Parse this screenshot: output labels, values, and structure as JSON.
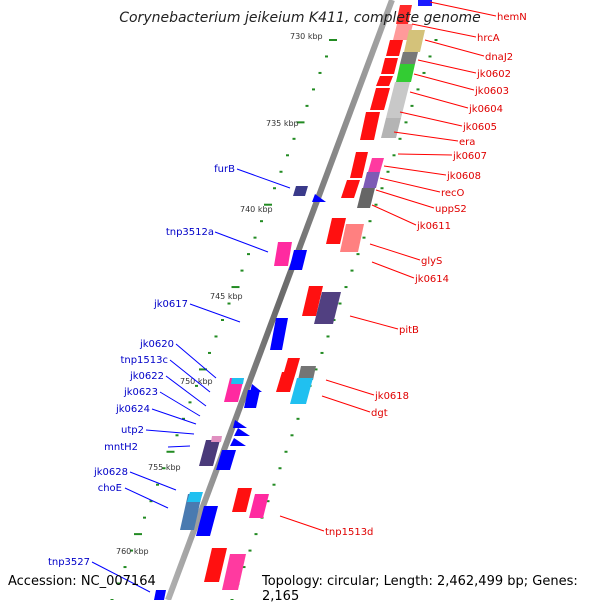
{
  "title": "Corynebacterium jeikeium K411, complete genome",
  "accession": "Accession: NC_007164",
  "topology": "Topology: circular; Length: 2,462,499 bp; Genes: 2,165",
  "colors": {
    "forward": "#ff0000",
    "reverse": "#0000ff",
    "backbone": "#8c8c8c",
    "tick": "#228b22"
  },
  "scale_labels": [
    "730 kbp",
    "735 kbp",
    "740 kbp",
    "745 kbp",
    "750 kbp",
    "755 kbp",
    "760 kbp"
  ],
  "forward_genes": [
    "hemN",
    "hrcA",
    "dnaJ2",
    "jk0602",
    "jk0603",
    "jk0604",
    "jk0605",
    "era",
    "jk0607",
    "jk0608",
    "recO",
    "uppS2",
    "jk0611",
    "glyS",
    "jk0614",
    "pitB",
    "jk0618",
    "dgt",
    "tnp1513d"
  ],
  "reverse_genes": [
    "furB",
    "tnp3512a",
    "jk0617",
    "jk0620",
    "tnp1513c",
    "jk0622",
    "jk0623",
    "jk0624",
    "utp2",
    "mntH2",
    "jk0628",
    "choE",
    "tnp3527"
  ]
}
